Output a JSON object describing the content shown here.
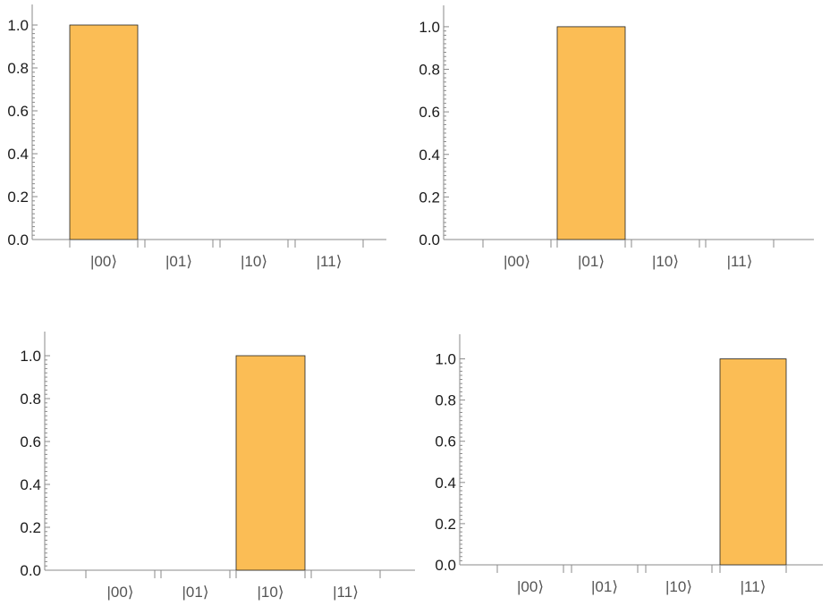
{
  "chart_data": [
    {
      "type": "bar",
      "categories": [
        "|00⟩",
        "|01⟩",
        "|10⟩",
        "|11⟩"
      ],
      "values": [
        1.0,
        0.0,
        0.0,
        0.0
      ],
      "ylim": [
        0,
        1.05
      ],
      "yticks": [
        "0.0",
        "0.2",
        "0.4",
        "0.6",
        "0.8",
        "1.0"
      ],
      "bar_color": "#fbbd55"
    },
    {
      "type": "bar",
      "categories": [
        "|00⟩",
        "|01⟩",
        "|10⟩",
        "|11⟩"
      ],
      "values": [
        0.0,
        1.0,
        0.0,
        0.0
      ],
      "ylim": [
        0,
        1.05
      ],
      "yticks": [
        "0.0",
        "0.2",
        "0.4",
        "0.6",
        "0.8",
        "1.0"
      ],
      "bar_color": "#fbbd55"
    },
    {
      "type": "bar",
      "categories": [
        "|00⟩",
        "|01⟩",
        "|10⟩",
        "|11⟩"
      ],
      "values": [
        0.0,
        0.0,
        1.0,
        0.0
      ],
      "ylim": [
        0,
        1.05
      ],
      "yticks": [
        "0.0",
        "0.2",
        "0.4",
        "0.6",
        "0.8",
        "1.0"
      ],
      "bar_color": "#fbbd55"
    },
    {
      "type": "bar",
      "categories": [
        "|00⟩",
        "|01⟩",
        "|10⟩",
        "|11⟩"
      ],
      "values": [
        0.0,
        0.0,
        0.0,
        1.0
      ],
      "ylim": [
        0,
        1.05
      ],
      "yticks": [
        "0.0",
        "0.2",
        "0.4",
        "0.6",
        "0.8",
        "1.0"
      ],
      "bar_color": "#fbbd55"
    }
  ]
}
